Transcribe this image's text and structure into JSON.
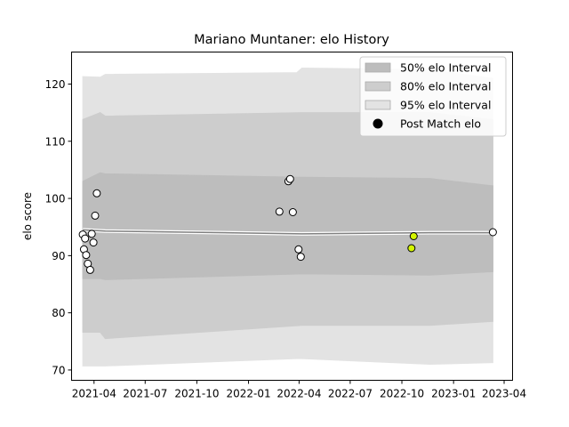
{
  "chart_data": {
    "type": "scatter",
    "title": "Mariano Muntaner: elo History",
    "xlabel": "",
    "ylabel": "elo score",
    "xlim": [
      "2021-02-20",
      "2023-04-16"
    ],
    "ylim": [
      68.2,
      125.6
    ],
    "x_ticks": [
      "2021-04",
      "2021-07",
      "2021-10",
      "2022-01",
      "2022-04",
      "2022-07",
      "2022-10",
      "2023-01",
      "2023-04"
    ],
    "y_ticks": [
      70,
      80,
      90,
      100,
      110,
      120
    ],
    "grid": false,
    "legend": {
      "placement": "top-right",
      "entries": [
        "50% elo Interval",
        "80% elo Interval",
        "95% elo Interval",
        "Post Match elo"
      ]
    },
    "colors": {
      "band95": "#e3e3e3",
      "band80": "#cdcdcd",
      "band50": "#bdbdbd",
      "mean_line": "#808080",
      "highlight_point": "#d4f500"
    },
    "series": [
      {
        "name": "95% elo Interval",
        "x": [
          "2021-03-12",
          "2021-04-12",
          "2021-04-21",
          "2022-03-28",
          "2022-04-06",
          "2022-11-20",
          "2023-03-12"
        ],
        "upper": [
          121.3,
          121.2,
          121.7,
          122.0,
          122.8,
          122.5,
          121.0
        ],
        "lower": [
          70.7,
          70.7,
          70.7,
          72.0,
          72.0,
          71.0,
          71.3
        ]
      },
      {
        "name": "80% elo Interval",
        "x": [
          "2021-03-12",
          "2021-04-12",
          "2021-04-21",
          "2022-04-06",
          "2022-11-20",
          "2023-03-12"
        ],
        "upper": [
          113.8,
          115.0,
          114.4,
          115.0,
          115.0,
          113.8
        ],
        "lower": [
          76.6,
          76.6,
          75.5,
          77.8,
          77.8,
          78.5
        ]
      },
      {
        "name": "50% elo Interval",
        "x": [
          "2021-03-12",
          "2021-04-12",
          "2021-04-21",
          "2022-04-06",
          "2022-11-20",
          "2023-03-12"
        ],
        "upper": [
          103.0,
          104.5,
          104.3,
          103.7,
          103.5,
          102.2
        ],
        "lower": [
          86.0,
          86.0,
          85.8,
          86.8,
          86.6,
          87.2
        ]
      },
      {
        "name": "mean",
        "x": [
          "2021-03-12",
          "2021-04-21",
          "2022-04-06",
          "2022-11-20",
          "2023-03-12"
        ],
        "values": [
          94.5,
          94.3,
          93.8,
          94.0,
          94.0
        ]
      },
      {
        "name": "Post Match elo",
        "points": [
          {
            "x": "2021-03-12",
            "y": 93.7
          },
          {
            "x": "2021-03-14",
            "y": 91.1
          },
          {
            "x": "2021-03-16",
            "y": 93.0
          },
          {
            "x": "2021-03-18",
            "y": 90.1
          },
          {
            "x": "2021-03-21",
            "y": 88.6
          },
          {
            "x": "2021-03-25",
            "y": 87.5
          },
          {
            "x": "2021-03-28",
            "y": 93.8
          },
          {
            "x": "2021-03-31",
            "y": 92.3
          },
          {
            "x": "2021-04-03",
            "y": 97.0
          },
          {
            "x": "2021-04-06",
            "y": 100.9
          },
          {
            "x": "2022-02-25",
            "y": 97.7
          },
          {
            "x": "2022-03-13",
            "y": 103.0
          },
          {
            "x": "2022-03-16",
            "y": 103.4
          },
          {
            "x": "2022-03-21",
            "y": 97.6
          },
          {
            "x": "2022-03-31",
            "y": 91.1
          },
          {
            "x": "2022-04-04",
            "y": 89.8
          },
          {
            "x": "2022-10-18",
            "y": 91.3,
            "highlight": true
          },
          {
            "x": "2022-10-22",
            "y": 93.4,
            "highlight": true
          },
          {
            "x": "2023-03-12",
            "y": 94.1
          }
        ]
      }
    ]
  }
}
